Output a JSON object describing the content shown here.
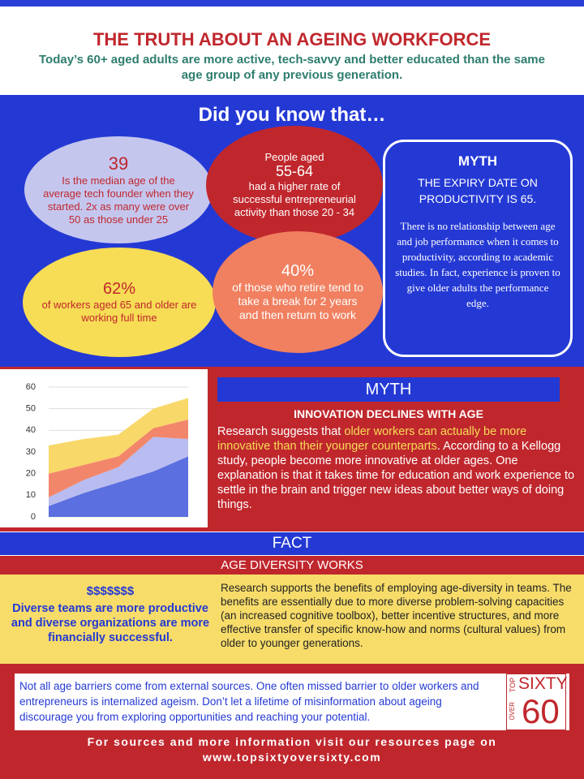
{
  "header": {
    "title": "THE TRUTH ABOUT AN AGEING WORKFORCE",
    "subtitle": "Today’s 60+ aged adults are more active, tech-savvy and better educated than the same age group of any previous generation."
  },
  "did_you_know": {
    "heading": "Did you know that…",
    "facts": [
      {
        "number": "39",
        "text": "Is the median age of the average tech founder when they started. 2x as many were over 50 as those under 25"
      },
      {
        "intro": "People aged",
        "number": "55-64",
        "text": "had a higher rate of successful entrepreneurial activity than those 20 - 34"
      },
      {
        "number": "62%",
        "text": "of workers aged 65 and older are working full time"
      },
      {
        "number": "40%",
        "text": "of those who retire tend to take a break for 2 years and then return to work"
      }
    ],
    "myth": {
      "label": "MYTH",
      "claim": "THE EXPIRY DATE ON PRODUCTIVITY IS 65.",
      "text": "There is no relationship between age and job performance when it comes to productivity, according to academic studies. In fact, experience is proven to give older adults the performance edge."
    }
  },
  "chart_data": {
    "type": "area",
    "stacked": true,
    "series": [
      {
        "color": "#5b6fe0",
        "values": [
          5,
          11,
          16,
          21,
          28
        ]
      },
      {
        "color": "#b9bcf0",
        "values": [
          4,
          6,
          7,
          16,
          8
        ]
      },
      {
        "color": "#f2866a",
        "values": [
          11,
          7,
          5,
          4,
          9
        ]
      },
      {
        "color": "#f9d86a",
        "values": [
          13,
          12,
          10,
          9,
          10
        ]
      }
    ],
    "ylim": [
      0,
      60
    ],
    "yticks": [
      0,
      10,
      20,
      30,
      40,
      50,
      60
    ],
    "grid": true
  },
  "innovation": {
    "label": "MYTH",
    "claim": "INNOVATION DECLINES WITH AGE",
    "text_before": "Research suggests that ",
    "highlight": "older workers can actually be more innovative than their younger counterparts",
    "text_after": ". According to a Kellogg study, people become more innovative at older ages. One explanation is that it takes time for education and work experience to settle in the brain and trigger new ideas about better ways of doing things."
  },
  "fact": {
    "label": "FACT",
    "heading": "AGE DIVERSITY WORKS",
    "symbol": "$$$$$$$",
    "claim": "Diverse teams are more productive and diverse organizations are more financially successful.",
    "text": "Research supports the benefits of employing age-diversity in teams. The benefits are essentially due to more diverse problem-solving capacities (an increased cognitive toolbox), better incentive structures, and more effective transfer of specific know-how and norms (cultural values) from older to younger generations."
  },
  "note": "Not all age barriers come from external sources. One often missed barrier to older workers and entrepreneurs is internalized ageism. Don’t let a lifetime of misinformation about ageing discourage you from exploring opportunities and reaching your potential.",
  "logo": {
    "top": "TOP",
    "sixty": "SIXTY",
    "over": "OVER",
    "number": "60"
  },
  "footer": {
    "line1": "For sources and more information visit our resources page on",
    "line2": "www.topsixtyoversixty.com"
  }
}
